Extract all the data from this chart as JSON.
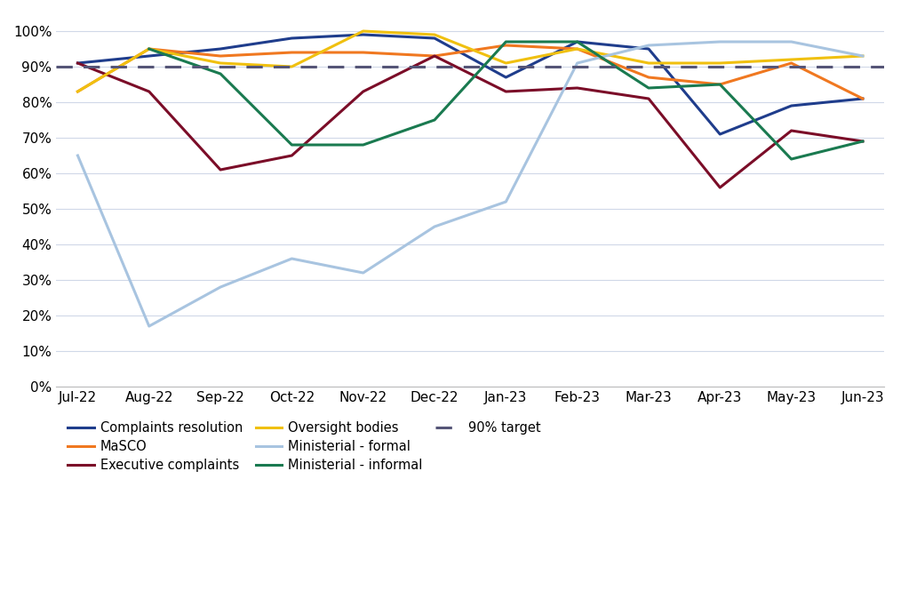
{
  "months": [
    "Jul-22",
    "Aug-22",
    "Sep-22",
    "Oct-22",
    "Nov-22",
    "Dec-22",
    "Jan-23",
    "Feb-23",
    "Mar-23",
    "Apr-23",
    "May-23",
    "Jun-23"
  ],
  "series": {
    "Complaints resolution": [
      91,
      93,
      95,
      98,
      99,
      98,
      87,
      97,
      95,
      71,
      79,
      81
    ],
    "MaSCO": [
      83,
      95,
      93,
      94,
      94,
      93,
      96,
      95,
      87,
      85,
      91,
      81
    ],
    "Executive complaints": [
      91,
      83,
      61,
      65,
      83,
      93,
      83,
      84,
      81,
      56,
      72,
      69
    ],
    "Oversight bodies": [
      83,
      95,
      91,
      90,
      100,
      99,
      91,
      95,
      91,
      91,
      92,
      93
    ],
    "Ministerial - formal": [
      65,
      17,
      28,
      36,
      32,
      45,
      52,
      91,
      96,
      97,
      97,
      93
    ],
    "Ministerial - informal": [
      null,
      95,
      88,
      68,
      68,
      75,
      97,
      97,
      84,
      85,
      64,
      69
    ]
  },
  "target": 90,
  "colors": {
    "Complaints resolution": "#1f3d8c",
    "MaSCO": "#f07820",
    "Executive complaints": "#7b0d28",
    "Oversight bodies": "#f0c010",
    "Ministerial - formal": "#a8c4e0",
    "Ministerial - informal": "#1a7a50"
  },
  "target_color": "#555577",
  "ylim": [
    0,
    105
  ],
  "yticks": [
    0,
    10,
    20,
    30,
    40,
    50,
    60,
    70,
    80,
    90,
    100
  ],
  "ytick_labels": [
    "0%",
    "10%",
    "20%",
    "30%",
    "40%",
    "50%",
    "60%",
    "70%",
    "80%",
    "90%",
    "100%"
  ],
  "background_color": "#ffffff",
  "grid_color": "#d0d8e8",
  "line_width": 2.2
}
